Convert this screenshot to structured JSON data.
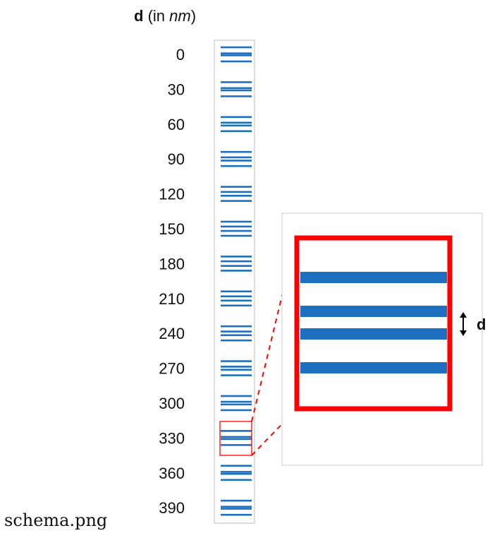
{
  "header": {
    "bold": "d",
    "paren_open": " (in ",
    "unit": "nm",
    "paren_close": ")"
  },
  "depths": [
    "0",
    "30",
    "60",
    "90",
    "120",
    "150",
    "180",
    "210",
    "240",
    "270",
    "300",
    "330",
    "360",
    "390"
  ],
  "zoom": {
    "symbol": "d"
  },
  "filename": "schema.png",
  "colors": {
    "stripe": "#1E6FBF",
    "highlight": "#FF0000",
    "border": "#BBBBBB"
  }
}
